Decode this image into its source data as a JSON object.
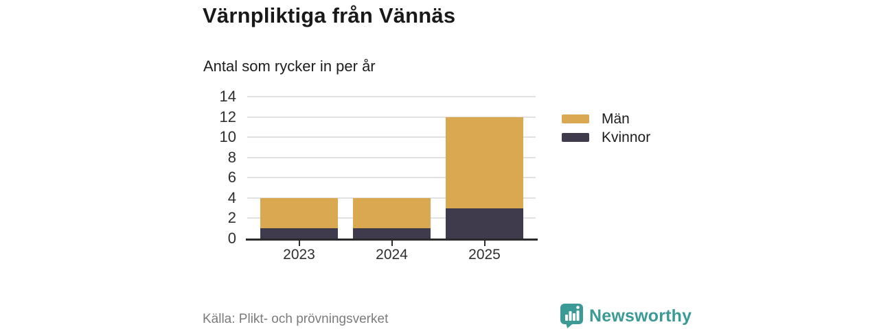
{
  "title": "Värnpliktiga från Vännäs",
  "subtitle": "Antal som rycker in per år",
  "footer": {
    "source": "Källa: Plikt- och prövningsverket"
  },
  "brand": {
    "name": "Newsworthy",
    "icon": "bar-chart-speech-bubble-icon",
    "color": "#3b9a96"
  },
  "legend": {
    "position": "right",
    "items": [
      {
        "label": "Män",
        "color": "#d9a850"
      },
      {
        "label": "Kvinnor",
        "color": "#3f3b4d"
      }
    ]
  },
  "chart_data": {
    "type": "bar",
    "stacked": true,
    "title": "Värnpliktiga från Vännäs",
    "subtitle": "Antal som rycker in per år",
    "categories": [
      "2023",
      "2024",
      "2025"
    ],
    "series": [
      {
        "name": "Kvinnor",
        "color": "#3f3b4d",
        "values": [
          1,
          1,
          3
        ]
      },
      {
        "name": "Män",
        "color": "#d9a850",
        "values": [
          3,
          3,
          9
        ]
      }
    ],
    "totals": [
      4,
      4,
      12
    ],
    "xlabel": "",
    "ylabel": "",
    "ylim": [
      0,
      14
    ],
    "yticks": [
      0,
      2,
      4,
      6,
      8,
      10,
      12,
      14
    ],
    "grid": true,
    "legend_position": "right",
    "source": "Källa: Plikt- och prövningsverket"
  }
}
